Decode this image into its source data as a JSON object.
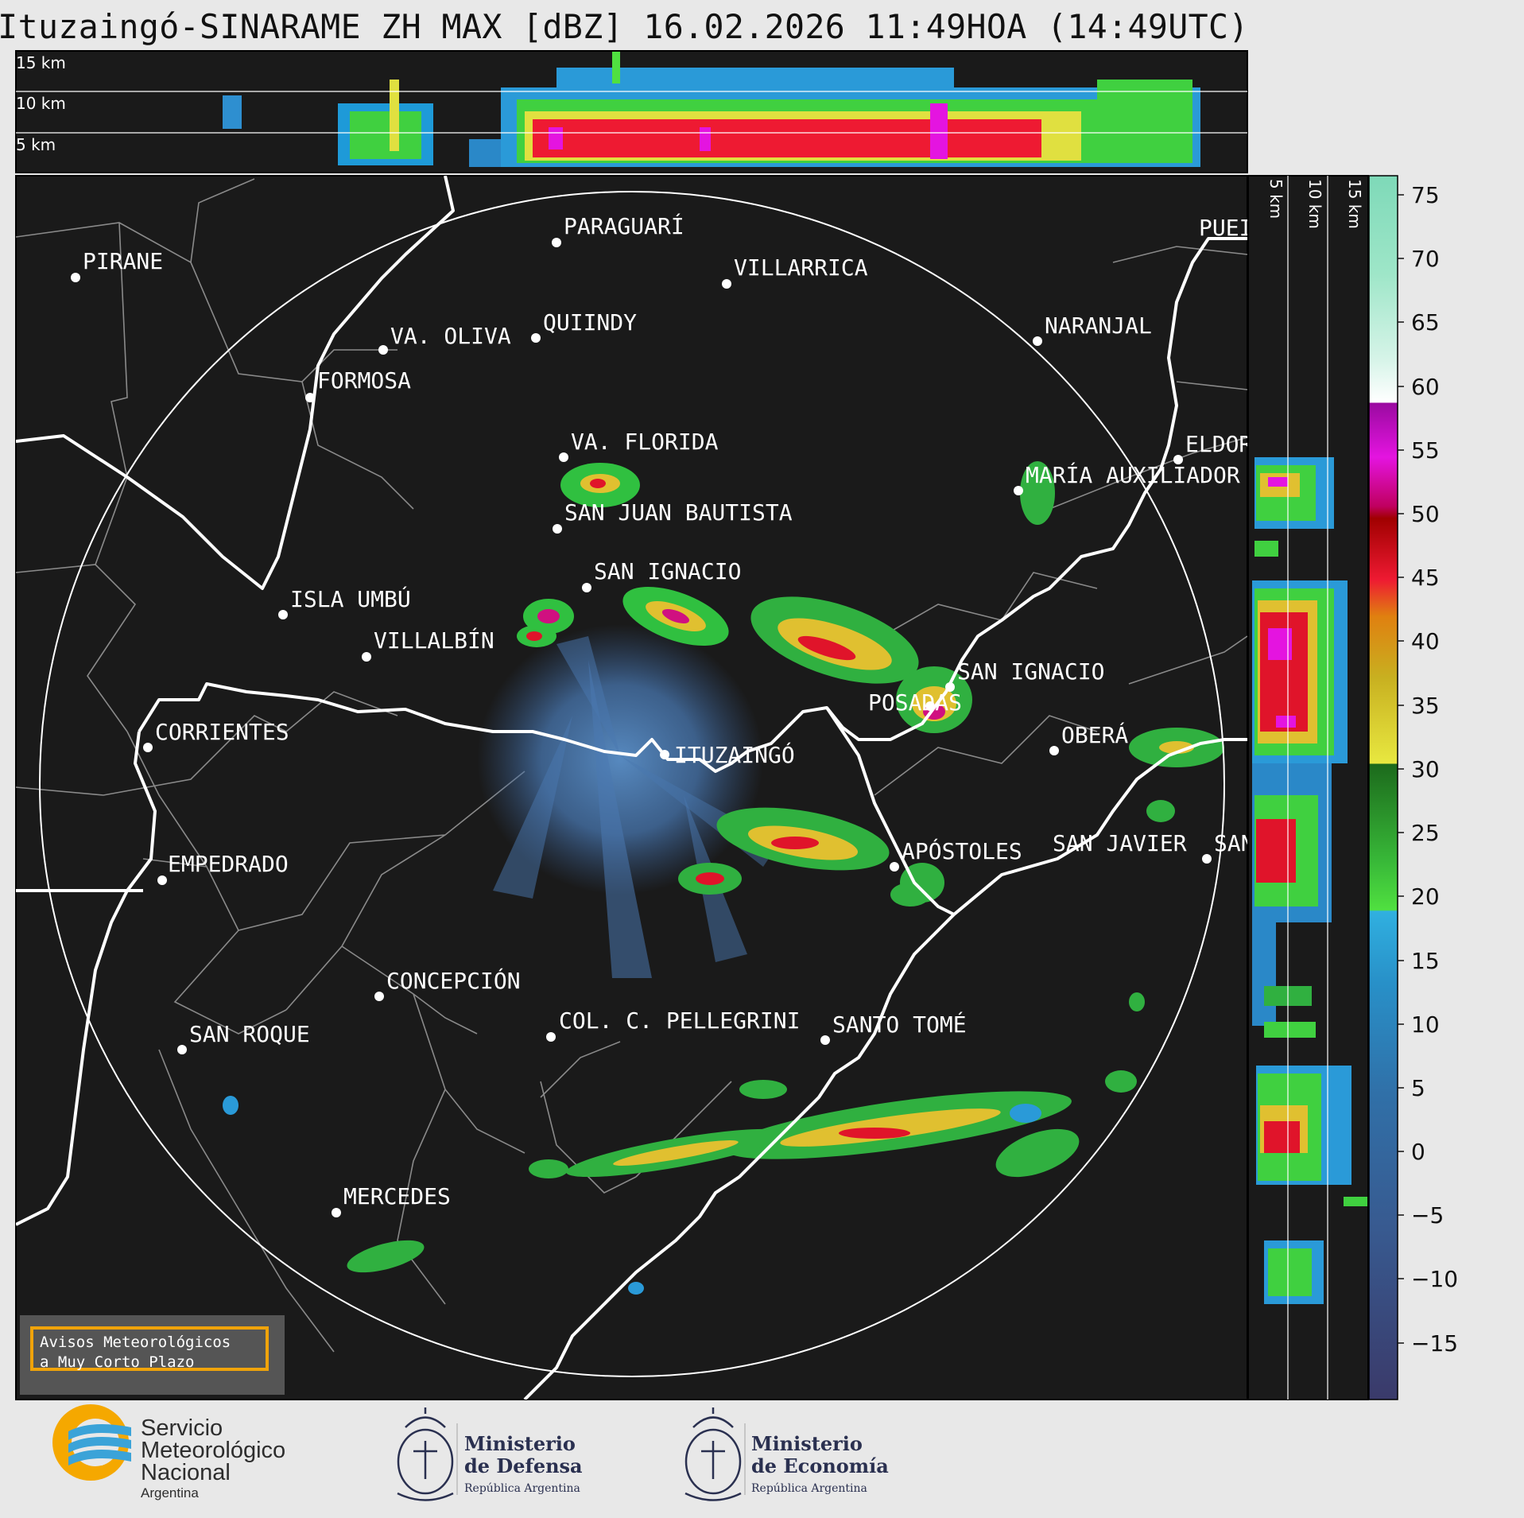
{
  "title": "Ituzaingó-SINARAME ZH MAX [dBZ] 16.02.2026 11:49HOA (14:49UTC)",
  "top_panel": {
    "height_labels": [
      "15 km",
      "10 km",
      "5 km"
    ]
  },
  "side_panel": {
    "height_labels": [
      "5 km",
      "10 km",
      "15 km"
    ]
  },
  "colorbar": {
    "unit": "dBZ",
    "ticks": [
      "75",
      "70",
      "65",
      "60",
      "55",
      "50",
      "45",
      "40",
      "35",
      "30",
      "25",
      "20",
      "15",
      "10",
      "5",
      "0",
      "−5",
      "−10",
      "−15"
    ]
  },
  "cities": [
    {
      "name": "PIRANE"
    },
    {
      "name": "PARAGUARÍ"
    },
    {
      "name": "VILLARRICA"
    },
    {
      "name": "QUIINDY"
    },
    {
      "name": "VA. OLIVA"
    },
    {
      "name": "NARANJAL"
    },
    {
      "name": "FORMOSA"
    },
    {
      "name": "VA. FLORIDA"
    },
    {
      "name": "ELDOR"
    },
    {
      "name": "MARÍA AUXILIADOR"
    },
    {
      "name": "SAN JUAN BAUTISTA"
    },
    {
      "name": "SAN IGNACIO"
    },
    {
      "name": "ISLA UMBÚ"
    },
    {
      "name": "VILLALBÍN"
    },
    {
      "name": "SAN IGNACIO"
    },
    {
      "name": "POSADAS"
    },
    {
      "name": "CORRIENTES"
    },
    {
      "name": "ITUZAINGÓ"
    },
    {
      "name": "OBERÁ"
    },
    {
      "name": "EMPEDRADO"
    },
    {
      "name": "APÓSTOLES"
    },
    {
      "name": "SAN JAVIER"
    },
    {
      "name": "SAN"
    },
    {
      "name": "CONCEPCIÓN"
    },
    {
      "name": "COL. C. PELLEGRINI"
    },
    {
      "name": "SANTO TOMÉ"
    },
    {
      "name": "SAN ROQUE"
    },
    {
      "name": "MERCEDES"
    },
    {
      "name": "PUEI"
    }
  ],
  "notice": {
    "line1": "Avisos Meteorológicos",
    "line2": "a Muy Corto Plazo"
  },
  "logos": {
    "smn": {
      "line1": "Servicio",
      "line2": "Meteorológico",
      "line3": "Nacional",
      "line4": "Argentina"
    },
    "defensa": {
      "line1": "Ministerio",
      "line2": "de Defensa",
      "line3": "República Argentina"
    },
    "economia": {
      "line1": "Ministerio",
      "line2": "de Economía",
      "line3": "República Argentina"
    }
  },
  "colors": {
    "background": "#1a1a1a",
    "border": "#e8e8e8",
    "range_ring": "#ffffff",
    "notice_border": "#f0a30a",
    "smn_orange": "#f5a800",
    "smn_blue": "#3ba3d8"
  }
}
